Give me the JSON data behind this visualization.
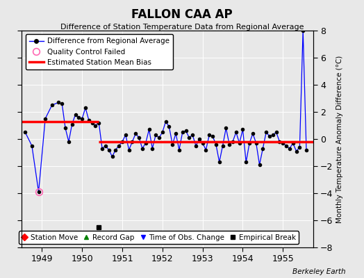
{
  "title": "FALLON CAA AP",
  "subtitle": "Difference of Station Temperature Data from Regional Average",
  "ylabel_right": "Monthly Temperature Anomaly Difference (°C)",
  "bg_color": "#e8e8e8",
  "plot_bg_color": "#e8e8e8",
  "ylim": [
    -8,
    8
  ],
  "xlim_start": 1948.5,
  "xlim_end": 1955.75,
  "bias_segment1": {
    "x_start": 1948.5,
    "x_end": 1950.4167,
    "y": 1.3
  },
  "bias_segment2": {
    "x_start": 1950.4167,
    "x_end": 1955.75,
    "y": -0.2
  },
  "empirical_break_x": 1950.4167,
  "empirical_break_y": -6.5,
  "qc_failed_x": 1948.917,
  "qc_failed_y": -3.9,
  "data": [
    [
      1948.583,
      0.5
    ],
    [
      1948.75,
      -0.5
    ],
    [
      1948.917,
      -3.9
    ],
    [
      1949.083,
      1.5
    ],
    [
      1949.25,
      2.5
    ],
    [
      1949.417,
      2.7
    ],
    [
      1949.5,
      2.6
    ],
    [
      1949.583,
      0.8
    ],
    [
      1949.667,
      -0.2
    ],
    [
      1949.75,
      1.1
    ],
    [
      1949.833,
      1.8
    ],
    [
      1949.917,
      1.6
    ],
    [
      1950.0,
      1.5
    ],
    [
      1950.083,
      2.3
    ],
    [
      1950.167,
      1.4
    ],
    [
      1950.25,
      1.2
    ],
    [
      1950.333,
      1.0
    ],
    [
      1950.4167,
      1.2
    ],
    [
      1950.5,
      -0.7
    ],
    [
      1950.583,
      -0.5
    ],
    [
      1950.667,
      -0.8
    ],
    [
      1950.75,
      -1.3
    ],
    [
      1950.833,
      -0.8
    ],
    [
      1950.917,
      -0.5
    ],
    [
      1951.0,
      -0.2
    ],
    [
      1951.083,
      0.3
    ],
    [
      1951.167,
      -0.8
    ],
    [
      1951.25,
      -0.2
    ],
    [
      1951.333,
      0.4
    ],
    [
      1951.417,
      0.1
    ],
    [
      1951.5,
      -0.7
    ],
    [
      1951.583,
      -0.3
    ],
    [
      1951.667,
      0.7
    ],
    [
      1951.75,
      -0.7
    ],
    [
      1951.833,
      0.3
    ],
    [
      1951.917,
      0.1
    ],
    [
      1952.0,
      0.5
    ],
    [
      1952.083,
      1.3
    ],
    [
      1952.167,
      0.9
    ],
    [
      1952.25,
      -0.4
    ],
    [
      1952.333,
      0.4
    ],
    [
      1952.417,
      -0.8
    ],
    [
      1952.5,
      0.5
    ],
    [
      1952.583,
      0.6
    ],
    [
      1952.667,
      0.1
    ],
    [
      1952.75,
      0.3
    ],
    [
      1952.833,
      -0.5
    ],
    [
      1952.917,
      0.0
    ],
    [
      1953.0,
      -0.3
    ],
    [
      1953.083,
      -0.8
    ],
    [
      1953.167,
      0.3
    ],
    [
      1953.25,
      0.2
    ],
    [
      1953.333,
      -0.4
    ],
    [
      1953.417,
      -1.7
    ],
    [
      1953.5,
      -0.5
    ],
    [
      1953.583,
      0.8
    ],
    [
      1953.667,
      -0.4
    ],
    [
      1953.75,
      -0.2
    ],
    [
      1953.833,
      0.5
    ],
    [
      1953.917,
      -0.3
    ],
    [
      1954.0,
      0.7
    ],
    [
      1954.083,
      -1.7
    ],
    [
      1954.167,
      -0.3
    ],
    [
      1954.25,
      0.4
    ],
    [
      1954.333,
      -0.3
    ],
    [
      1954.417,
      -1.9
    ],
    [
      1954.5,
      -0.7
    ],
    [
      1954.583,
      0.5
    ],
    [
      1954.667,
      0.2
    ],
    [
      1954.75,
      0.3
    ],
    [
      1954.833,
      0.5
    ],
    [
      1954.917,
      -0.2
    ],
    [
      1955.0,
      -0.3
    ],
    [
      1955.083,
      -0.5
    ],
    [
      1955.167,
      -0.7
    ],
    [
      1955.25,
      -0.3
    ],
    [
      1955.333,
      -0.9
    ],
    [
      1955.417,
      -0.6
    ],
    [
      1955.5,
      8.0
    ],
    [
      1955.583,
      -0.8
    ]
  ],
  "line_color": "blue",
  "marker_color": "black",
  "bias_color": "red",
  "year_ticks": [
    1949,
    1950,
    1951,
    1952,
    1953,
    1954,
    1955
  ],
  "berkeley_earth_text": "Berkeley Earth"
}
